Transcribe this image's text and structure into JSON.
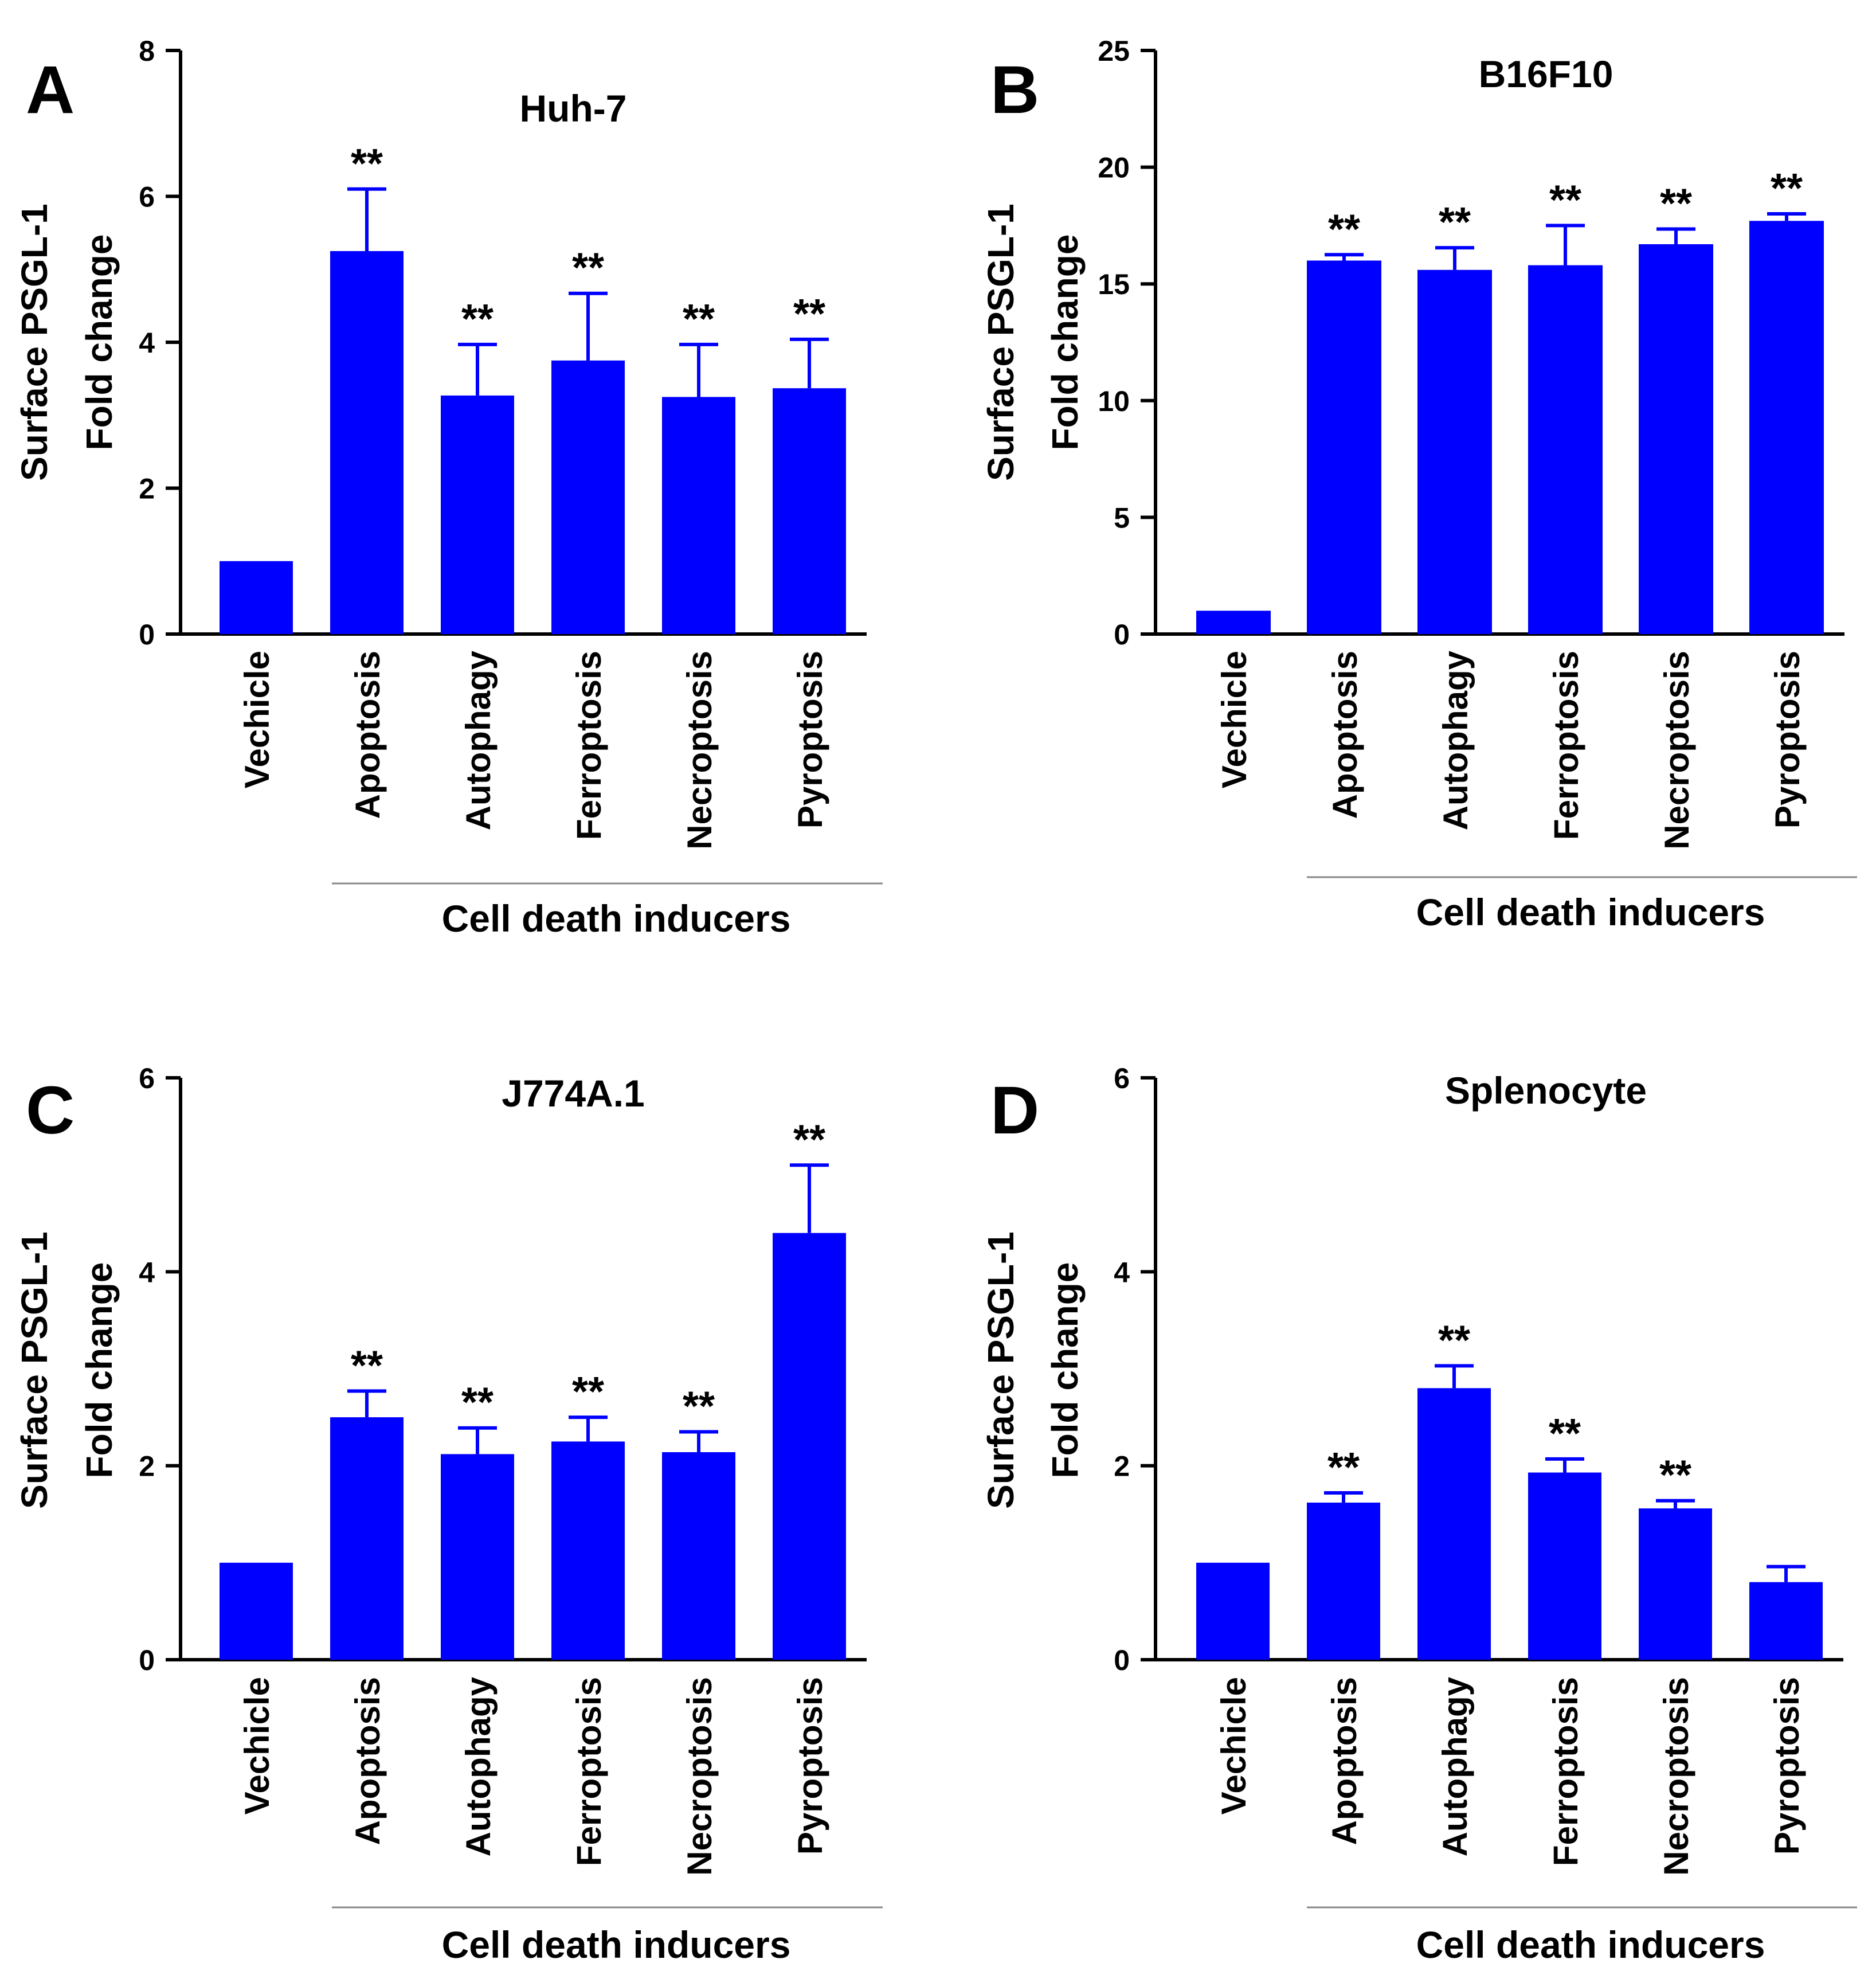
{
  "figure": {
    "bar_color": "#0000ff",
    "axis_color": "#000000",
    "bracket_color": "#888888"
  },
  "chart_data": [
    {
      "panel_label": "A",
      "type": "bar",
      "title": "Huh-7",
      "ylabel_line1": "Surface PSGL-1",
      "ylabel_line2": "Fold change",
      "xlabel": "Cell death inducers",
      "ylim": [
        0,
        8
      ],
      "yticks": [
        0,
        2,
        4,
        6,
        8
      ],
      "categories": [
        "Vechicle",
        "Apoptosis",
        "Autophagy",
        "Ferroptosis",
        "Necroptosis",
        "Pyroptosis"
      ],
      "values": [
        1.0,
        5.25,
        3.27,
        3.75,
        3.25,
        3.37
      ],
      "errors": [
        0,
        0.85,
        0.7,
        0.92,
        0.72,
        0.67
      ],
      "significance": [
        "",
        "**",
        "**",
        "**",
        "**",
        "**"
      ]
    },
    {
      "panel_label": "B",
      "type": "bar",
      "title": "B16F10",
      "ylabel_line1": "Surface PSGL-1",
      "ylabel_line2": "Fold change",
      "xlabel": "Cell death inducers",
      "ylim": [
        0,
        25
      ],
      "yticks": [
        0,
        5,
        10,
        15,
        20,
        25
      ],
      "categories": [
        "Vechicle",
        "Apoptosis",
        "Autophagy",
        "Ferroptosis",
        "Necroptosis",
        "Pyroptosis"
      ],
      "values": [
        1.0,
        16.0,
        15.6,
        15.8,
        16.7,
        17.7
      ],
      "errors": [
        0,
        0.25,
        0.95,
        1.7,
        0.65,
        0.3
      ],
      "significance": [
        "",
        "**",
        "**",
        "**",
        "**",
        "**"
      ]
    },
    {
      "panel_label": "C",
      "type": "bar",
      "title": "J774A.1",
      "ylabel_line1": "Surface PSGL-1",
      "ylabel_line2": "Fold change",
      "xlabel": "Cell death inducers",
      "ylim": [
        0,
        6
      ],
      "yticks": [
        0,
        2,
        4,
        6
      ],
      "categories": [
        "Vechicle",
        "Apoptosis",
        "Autophagy",
        "Ferroptosis",
        "Necroptosis",
        "Pyroptosis"
      ],
      "values": [
        1.0,
        2.5,
        2.12,
        2.25,
        2.14,
        4.4
      ],
      "errors": [
        0,
        0.27,
        0.27,
        0.25,
        0.21,
        0.7
      ],
      "significance": [
        "",
        "**",
        "**",
        "**",
        "**",
        "**"
      ]
    },
    {
      "panel_label": "D",
      "type": "bar",
      "title": "Splenocyte",
      "ylabel_line1": "Surface PSGL-1",
      "ylabel_line2": "Fold change",
      "xlabel": "Cell death inducers",
      "ylim": [
        0,
        6
      ],
      "yticks": [
        0,
        2,
        4,
        6
      ],
      "categories": [
        "Vechicle",
        "Apoptosis",
        "Autophagy",
        "Ferroptosis",
        "Necroptosis",
        "Pyroptosis"
      ],
      "values": [
        1.0,
        1.62,
        2.8,
        1.93,
        1.56,
        0.8
      ],
      "errors": [
        0,
        0.1,
        0.23,
        0.14,
        0.08,
        0.16
      ],
      "significance": [
        "",
        "**",
        "**",
        "**",
        "**",
        ""
      ]
    }
  ]
}
